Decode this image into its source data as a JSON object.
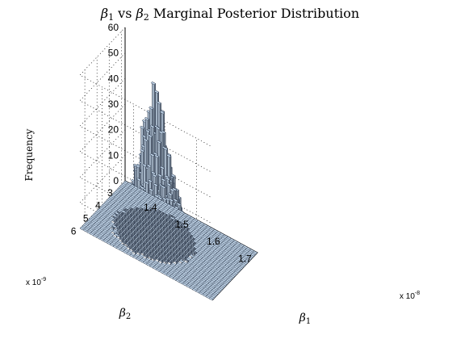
{
  "chart_data": {
    "type": "bar3d-histogram",
    "title": "β1 vs β2 Marginal Posterior Distribution",
    "title_parts": {
      "beta": "β",
      "sub1": "1",
      "vs": " vs ",
      "sub2": "2",
      "rest": " Marginal Posterior Distribution"
    },
    "xlabel": {
      "symbol": "β",
      "subscript": "1"
    },
    "ylabel": {
      "symbol": "β",
      "subscript": "2"
    },
    "zlabel": "Frequency",
    "x_multiplier": "x 10",
    "x_multiplier_exp": "-8",
    "y_multiplier": "x 10",
    "y_multiplier_exp": "-9",
    "xlim": [
      1.33,
      1.75
    ],
    "ylim": [
      2.7,
      6.4
    ],
    "zlim": [
      0,
      60
    ],
    "x_ticks": [
      "1.4",
      "1.5",
      "1.6",
      "1.7"
    ],
    "x_tick_values": [
      1.4,
      1.5,
      1.6,
      1.7
    ],
    "y_ticks": [
      "3",
      "4",
      "5",
      "6"
    ],
    "y_tick_values": [
      3,
      4,
      5,
      6
    ],
    "z_ticks": [
      "0",
      "10",
      "20",
      "30",
      "40",
      "50",
      "60"
    ],
    "z_tick_values": [
      0,
      10,
      20,
      30,
      40,
      50,
      60
    ],
    "grid": true,
    "bins": 40,
    "peak": {
      "x": 1.5,
      "y": 4.7,
      "frequency": 47
    },
    "bar_color": "#c8dcf0",
    "edge_color": "#202c40"
  }
}
